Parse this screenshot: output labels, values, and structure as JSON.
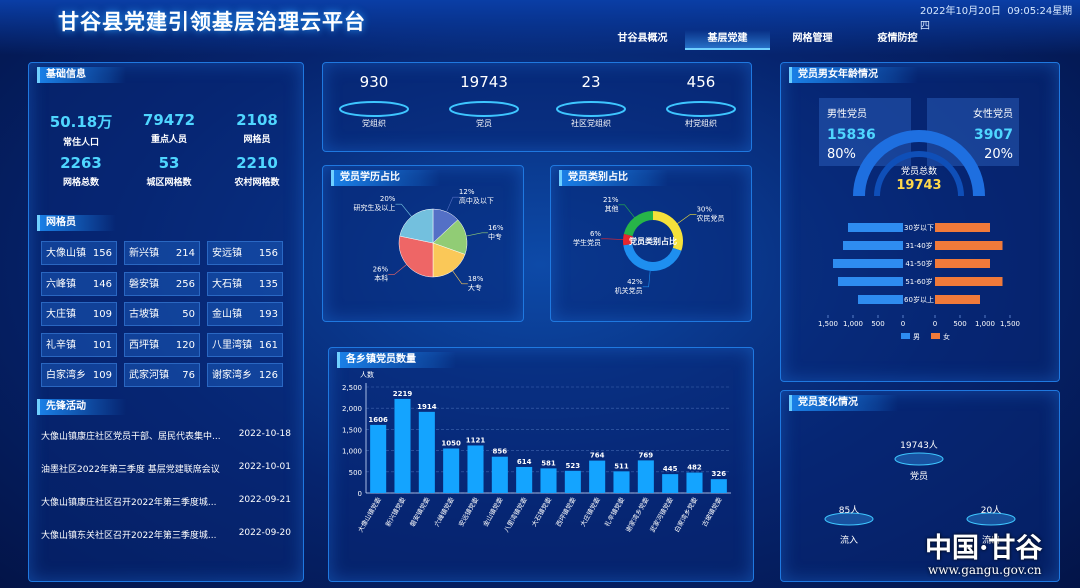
{
  "header": {
    "title": "甘谷县党建引领基层治理云平台",
    "date": "2022年10月20日",
    "time": "09:05:24",
    "weekday": "星期四",
    "nav": [
      "甘谷县概况",
      "基层党建",
      "网格管理",
      "疫情防控"
    ]
  },
  "basic_info": {
    "title": "基础信息",
    "stats": [
      {
        "value": "50.18万",
        "label": "常住人口"
      },
      {
        "value": 79472,
        "label": "重点人员"
      },
      {
        "value": 2108,
        "label": "网格员"
      },
      {
        "value": 2263,
        "label": "网格总数"
      },
      {
        "value": 53,
        "label": "城区网格数"
      },
      {
        "value": 2210,
        "label": "农村网格数"
      }
    ]
  },
  "grid_staff": {
    "title": "网格员",
    "items": [
      {
        "name": "大像山镇",
        "count": 156
      },
      {
        "name": "新兴镇",
        "count": 214
      },
      {
        "name": "安远镇",
        "count": 156
      },
      {
        "name": "六峰镇",
        "count": 146
      },
      {
        "name": "磐安镇",
        "count": 256
      },
      {
        "name": "大石镇",
        "count": 135
      },
      {
        "name": "大庄镇",
        "count": 109
      },
      {
        "name": "古坡镇",
        "count": 50
      },
      {
        "name": "金山镇",
        "count": 193
      },
      {
        "name": "礼辛镇",
        "count": 101
      },
      {
        "name": "西坪镇",
        "count": 120
      },
      {
        "name": "八里湾镇",
        "count": 161
      },
      {
        "name": "白家湾乡",
        "count": 109
      },
      {
        "name": "武家河镇",
        "count": 76
      },
      {
        "name": "谢家湾乡",
        "count": 126
      }
    ]
  },
  "activities": {
    "title": "先锋活动",
    "items": [
      {
        "text": "大像山镇康庄社区党员干部、居民代表集中...",
        "date": "2022-10-18"
      },
      {
        "text": "油墨社区2022年第三季度 基层党建联席会议",
        "date": "2022-10-01"
      },
      {
        "text": "大像山镇康庄社区召开2022年第三季度城...",
        "date": "2022-09-21"
      },
      {
        "text": "大像山镇东关社区召开2022年第三季度城...",
        "date": "2022-09-20"
      }
    ]
  },
  "org_counts": [
    {
      "value": 930,
      "label": "党组织"
    },
    {
      "value": 19743,
      "label": "党员"
    },
    {
      "value": 23,
      "label": "社区党组织"
    },
    {
      "value": 456,
      "label": "村党组织"
    }
  ],
  "chart_data": [
    {
      "type": "pie",
      "title": "党员学历占比",
      "categories": [
        "高中及以下",
        "中专",
        "大专",
        "本科",
        "研究生及以上"
      ],
      "values": [
        12,
        16,
        18,
        26,
        20
      ],
      "value_labels": [
        "12%",
        "16%",
        "18%",
        "26%",
        "20%"
      ],
      "colors": [
        "#5470c6",
        "#91cc75",
        "#fac858",
        "#ee6666",
        "#73c0de"
      ]
    },
    {
      "type": "donut",
      "title": "党员类别占比",
      "center_label": "党员类别占比",
      "categories": [
        "农民党员",
        "机关党员",
        "学生党员",
        "其他"
      ],
      "values": [
        30,
        42,
        6,
        21
      ],
      "value_labels": [
        "30%",
        "42%",
        "6%",
        "21%"
      ],
      "colors": [
        "#f5e13a",
        "#1e8ff0",
        "#e8262d",
        "#27b548"
      ]
    },
    {
      "type": "butterfly",
      "title": "党员男女年龄情况",
      "male_label": "男性党员",
      "male_count": 15836,
      "male_pct": "80%",
      "female_label": "女性党员",
      "female_count": 3907,
      "female_pct": "20%",
      "total_label": "党员总数",
      "total": 19743,
      "categories": [
        "30岁以下",
        "31-40岁",
        "41-50岁",
        "51-60岁",
        "60岁以上"
      ],
      "series": [
        {
          "name": "男",
          "color": "#2e8cf0",
          "values": [
            1100,
            1200,
            1400,
            1300,
            900
          ]
        },
        {
          "name": "女",
          "color": "#f07a3a",
          "values": [
            1100,
            1350,
            1100,
            1350,
            900
          ]
        }
      ],
      "xlim": [
        0,
        1500
      ],
      "xticks": [
        0,
        500,
        {
          "value": 1000,
          "label": "1,000"
        },
        {
          "value": 1500,
          "label": "1,500"
        }
      ]
    },
    {
      "type": "bar",
      "title": "各乡镇党员数量",
      "y_label": "人数",
      "categories": [
        "大像山镇党委",
        "新兴镇党委",
        "磐安镇党委",
        "六峰镇党委",
        "安远镇党委",
        "金山镇党委",
        "八里湾镇党委",
        "大石镇党委",
        "西坪镇党委",
        "大庄镇党委",
        "礼辛镇党委",
        "谢家湾乡党委",
        "武家河镇党委",
        "白家湾乡党委",
        "古坡镇党委"
      ],
      "values": [
        1606,
        2219,
        1914,
        1050,
        1121,
        856,
        614,
        581,
        523,
        764,
        511,
        769,
        445,
        482,
        326
      ],
      "color": "#14a4ff",
      "ylim": [
        0,
        2500
      ],
      "yticks": [
        0,
        500,
        {
          "value": 1000,
          "label": "1,000"
        },
        {
          "value": 1500,
          "label": "1,500"
        },
        {
          "value": 2000,
          "label": "2,000"
        },
        {
          "value": 2500,
          "label": "2,500"
        }
      ],
      "grid": true
    }
  ],
  "change": {
    "title": "党员变化情况",
    "total": "19743人",
    "total_label": "党员",
    "in": "85人",
    "in_label": "流入",
    "out": "20人",
    "out_label": "流出"
  },
  "watermark": {
    "name": "中国·甘谷",
    "url": "www.gangu.gov.cn"
  }
}
